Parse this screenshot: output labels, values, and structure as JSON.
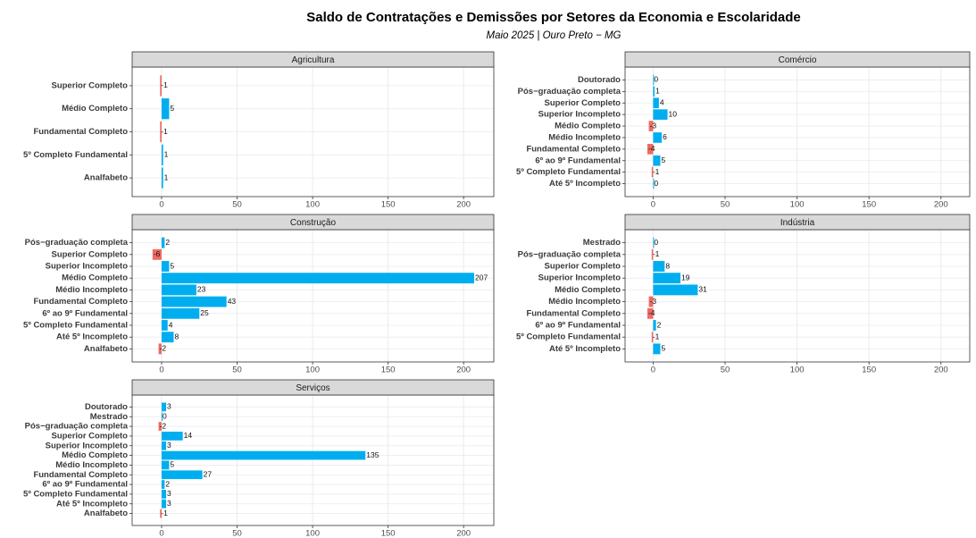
{
  "title": "Saldo de Contratações e Demissões por Setores da Economia e Escolaridade",
  "subtitle": "Maio 2025 | Ouro Preto − MG",
  "chart_data": [
    {
      "type": "bar",
      "title": "Agricultura",
      "categories": [
        "Superior Completo",
        "Médio Completo",
        "Fundamental Completo",
        "5º Completo Fundamental",
        "Analfabeto"
      ],
      "values": [
        -1,
        5,
        -1,
        1,
        1
      ],
      "xlim": [
        -19.5,
        220
      ],
      "xticks": [
        0,
        50,
        100,
        150,
        200
      ],
      "grid": true,
      "positive_color": "#00aeef",
      "negative_color": "#ef6a62"
    },
    {
      "type": "bar",
      "title": "Comércio",
      "categories": [
        "Doutorado",
        "Pós−graduação completa",
        "Superior Completo",
        "Superior Incompleto",
        "Médio Completo",
        "Médio Incompleto",
        "Fundamental Completo",
        "6º ao 9º Fundamental",
        "5º Completo Fundamental",
        "Até 5º Incompleto"
      ],
      "values": [
        0,
        1,
        4,
        10,
        -3,
        6,
        -4,
        5,
        -1,
        0
      ],
      "xlim": [
        -19.5,
        220
      ],
      "xticks": [
        0,
        50,
        100,
        150,
        200
      ],
      "grid": true,
      "positive_color": "#00aeef",
      "negative_color": "#ef6a62"
    },
    {
      "type": "bar",
      "title": "Construção",
      "categories": [
        "Pós−graduação completa",
        "Superior Completo",
        "Superior Incompleto",
        "Médio Completo",
        "Médio Incompleto",
        "Fundamental Completo",
        "6º ao 9º Fundamental",
        "5º Completo Fundamental",
        "Até 5º Incompleto",
        "Analfabeto"
      ],
      "values": [
        2,
        -6,
        5,
        207,
        23,
        43,
        25,
        4,
        8,
        -2
      ],
      "xlim": [
        -19.5,
        220
      ],
      "xticks": [
        0,
        50,
        100,
        150,
        200
      ],
      "grid": true,
      "positive_color": "#00aeef",
      "negative_color": "#ef6a62"
    },
    {
      "type": "bar",
      "title": "Indústria",
      "categories": [
        "Mestrado",
        "Pós−graduação completa",
        "Superior Completo",
        "Superior Incompleto",
        "Médio Completo",
        "Médio Incompleto",
        "Fundamental Completo",
        "6º ao 9º Fundamental",
        "5º Completo Fundamental",
        "Até 5º Incompleto"
      ],
      "values": [
        0,
        -1,
        8,
        19,
        31,
        -3,
        -4,
        2,
        -1,
        5
      ],
      "xlim": [
        -19.5,
        220
      ],
      "xticks": [
        0,
        50,
        100,
        150,
        200
      ],
      "grid": true,
      "positive_color": "#00aeef",
      "negative_color": "#ef6a62"
    },
    {
      "type": "bar",
      "title": "Serviços",
      "categories": [
        "Doutorado",
        "Mestrado",
        "Pós−graduação completa",
        "Superior Completo",
        "Superior Incompleto",
        "Médio Completo",
        "Médio Incompleto",
        "Fundamental Completo",
        "6º ao 9º Fundamental",
        "5º Completo Fundamental",
        "Até 5º Incompleto",
        "Analfabeto"
      ],
      "values": [
        3,
        0,
        -2,
        14,
        3,
        135,
        5,
        27,
        2,
        3,
        3,
        -1
      ],
      "xlim": [
        -19.5,
        220
      ],
      "xticks": [
        0,
        50,
        100,
        150,
        200
      ],
      "grid": true,
      "positive_color": "#00aeef",
      "negative_color": "#ef6a62"
    }
  ]
}
